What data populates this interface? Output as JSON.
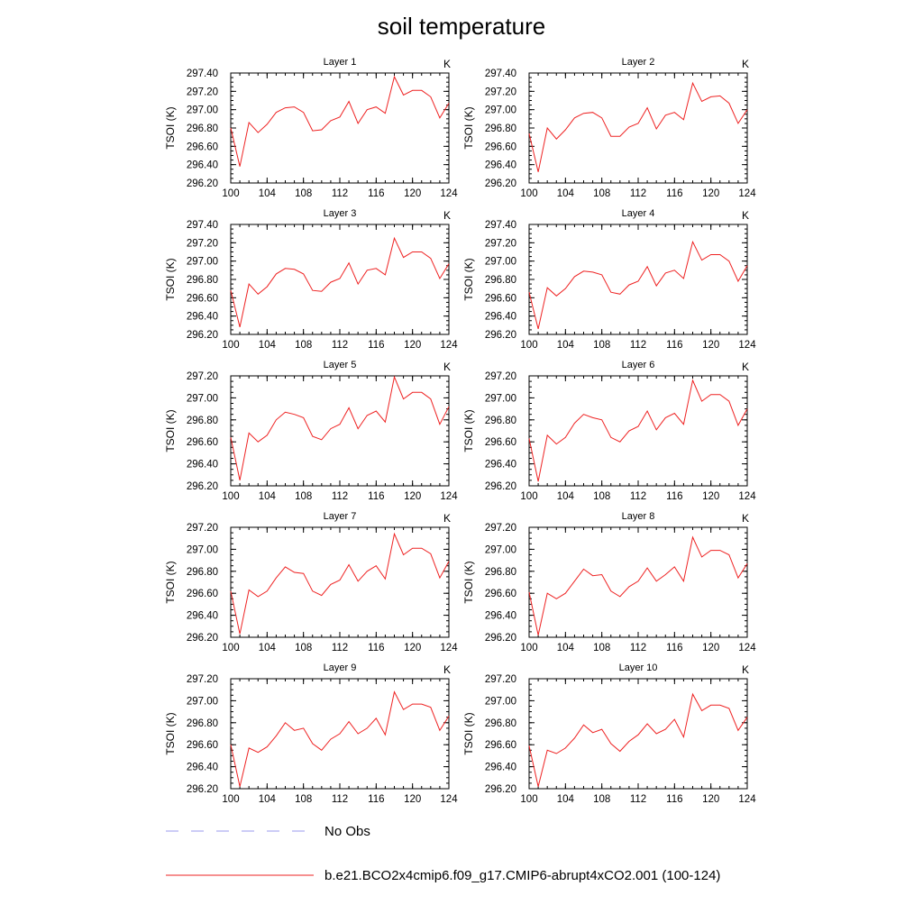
{
  "figure": {
    "title": "soil temperature",
    "legend": {
      "items": [
        {
          "label": "No Obs",
          "color": "#9999ee",
          "style": "dashed"
        },
        {
          "label": "b.e21.BCO2x4cmip6.f09_g17.CMIP6-abrupt4xCO2.001 (100-124)",
          "color": "#ee2222",
          "style": "solid"
        }
      ]
    }
  },
  "chart_data": [
    {
      "type": "line",
      "title": "Layer 1",
      "units": "K",
      "ylabel": "TSOI  (K)",
      "xlim": [
        100,
        124
      ],
      "xticks": [
        100,
        104,
        108,
        112,
        116,
        120,
        124
      ],
      "ylim": [
        296.2,
        297.4
      ],
      "yticks": [
        "296.20",
        "296.40",
        "296.60",
        "296.80",
        "297.00",
        "297.20",
        "297.40"
      ],
      "x": [
        100,
        101,
        102,
        103,
        104,
        105,
        106,
        107,
        108,
        109,
        110,
        111,
        112,
        113,
        114,
        115,
        116,
        117,
        118,
        119,
        120,
        121,
        122,
        123,
        124
      ],
      "series": [
        {
          "name": "b.e21.BCO2x4cmip6.f09_g17.CMIP6-abrupt4xCO2.001 (100-124)",
          "values": [
            296.8,
            296.38,
            296.86,
            296.75,
            296.84,
            296.97,
            297.02,
            297.03,
            296.97,
            296.77,
            296.78,
            296.88,
            296.92,
            297.09,
            296.85,
            297.0,
            297.03,
            296.96,
            297.36,
            297.16,
            297.21,
            297.21,
            297.14,
            296.91,
            297.07
          ]
        }
      ]
    },
    {
      "type": "line",
      "title": "Layer 2",
      "units": "K",
      "ylabel": "TSOI  (K)",
      "xlim": [
        100,
        124
      ],
      "xticks": [
        100,
        104,
        108,
        112,
        116,
        120,
        124
      ],
      "ylim": [
        296.2,
        297.4
      ],
      "yticks": [
        "296.20",
        "296.40",
        "296.60",
        "296.80",
        "297.00",
        "297.20",
        "297.40"
      ],
      "x": [
        100,
        101,
        102,
        103,
        104,
        105,
        106,
        107,
        108,
        109,
        110,
        111,
        112,
        113,
        114,
        115,
        116,
        117,
        118,
        119,
        120,
        121,
        122,
        123,
        124
      ],
      "series": [
        {
          "name": "b.e21.BCO2x4cmip6.f09_g17.CMIP6-abrupt4xCO2.001 (100-124)",
          "values": [
            296.74,
            296.32,
            296.8,
            296.68,
            296.78,
            296.91,
            296.96,
            296.97,
            296.91,
            296.71,
            296.71,
            296.81,
            296.85,
            297.02,
            296.79,
            296.94,
            296.97,
            296.89,
            297.29,
            297.09,
            297.14,
            297.15,
            297.07,
            296.85,
            297.0
          ]
        }
      ]
    },
    {
      "type": "line",
      "title": "Layer 3",
      "units": "K",
      "ylabel": "TSOI  (K)",
      "xlim": [
        100,
        124
      ],
      "xticks": [
        100,
        104,
        108,
        112,
        116,
        120,
        124
      ],
      "ylim": [
        296.2,
        297.4
      ],
      "yticks": [
        "296.20",
        "296.40",
        "296.60",
        "296.80",
        "297.00",
        "297.20",
        "297.40"
      ],
      "x": [
        100,
        101,
        102,
        103,
        104,
        105,
        106,
        107,
        108,
        109,
        110,
        111,
        112,
        113,
        114,
        115,
        116,
        117,
        118,
        119,
        120,
        121,
        122,
        123,
        124
      ],
      "series": [
        {
          "name": "b.e21.BCO2x4cmip6.f09_g17.CMIP6-abrupt4xCO2.001 (100-124)",
          "values": [
            296.68,
            296.28,
            296.75,
            296.64,
            296.72,
            296.86,
            296.92,
            296.91,
            296.86,
            296.68,
            296.67,
            296.77,
            296.81,
            296.98,
            296.75,
            296.9,
            296.92,
            296.85,
            297.25,
            297.04,
            297.1,
            297.1,
            297.03,
            296.81,
            296.97
          ]
        }
      ]
    },
    {
      "type": "line",
      "title": "Layer 4",
      "units": "K",
      "ylabel": "TSOI  (K)",
      "xlim": [
        100,
        124
      ],
      "xticks": [
        100,
        104,
        108,
        112,
        116,
        120,
        124
      ],
      "ylim": [
        296.2,
        297.4
      ],
      "yticks": [
        "296.20",
        "296.40",
        "296.60",
        "296.80",
        "297.00",
        "297.20",
        "297.40"
      ],
      "x": [
        100,
        101,
        102,
        103,
        104,
        105,
        106,
        107,
        108,
        109,
        110,
        111,
        112,
        113,
        114,
        115,
        116,
        117,
        118,
        119,
        120,
        121,
        122,
        123,
        124
      ],
      "series": [
        {
          "name": "b.e21.BCO2x4cmip6.f09_g17.CMIP6-abrupt4xCO2.001 (100-124)",
          "values": [
            296.66,
            296.26,
            296.71,
            296.62,
            296.7,
            296.83,
            296.89,
            296.88,
            296.85,
            296.66,
            296.64,
            296.74,
            296.78,
            296.94,
            296.73,
            296.87,
            296.9,
            296.81,
            297.21,
            297.01,
            297.07,
            297.07,
            297.0,
            296.78,
            296.95
          ]
        }
      ]
    },
    {
      "type": "line",
      "title": "Layer 5",
      "units": "K",
      "ylabel": "TSOI  (K)",
      "xlim": [
        100,
        124
      ],
      "xticks": [
        100,
        104,
        108,
        112,
        116,
        120,
        124
      ],
      "ylim": [
        296.2,
        297.2
      ],
      "yticks": [
        "296.20",
        "296.40",
        "296.60",
        "296.80",
        "297.00",
        "297.20"
      ],
      "x": [
        100,
        101,
        102,
        103,
        104,
        105,
        106,
        107,
        108,
        109,
        110,
        111,
        112,
        113,
        114,
        115,
        116,
        117,
        118,
        119,
        120,
        121,
        122,
        123,
        124
      ],
      "series": [
        {
          "name": "b.e21.BCO2x4cmip6.f09_g17.CMIP6-abrupt4xCO2.001 (100-124)",
          "values": [
            296.64,
            296.25,
            296.68,
            296.6,
            296.66,
            296.8,
            296.87,
            296.85,
            296.82,
            296.65,
            296.62,
            296.72,
            296.76,
            296.91,
            296.72,
            296.84,
            296.88,
            296.78,
            297.19,
            296.99,
            297.05,
            297.05,
            296.99,
            296.76,
            296.92
          ]
        }
      ]
    },
    {
      "type": "line",
      "title": "Layer 6",
      "units": "K",
      "ylabel": "TSOI  (K)",
      "xlim": [
        100,
        124
      ],
      "xticks": [
        100,
        104,
        108,
        112,
        116,
        120,
        124
      ],
      "ylim": [
        296.2,
        297.2
      ],
      "yticks": [
        "296.20",
        "296.40",
        "296.60",
        "296.80",
        "297.00",
        "297.20"
      ],
      "x": [
        100,
        101,
        102,
        103,
        104,
        105,
        106,
        107,
        108,
        109,
        110,
        111,
        112,
        113,
        114,
        115,
        116,
        117,
        118,
        119,
        120,
        121,
        122,
        123,
        124
      ],
      "series": [
        {
          "name": "b.e21.BCO2x4cmip6.f09_g17.CMIP6-abrupt4xCO2.001 (100-124)",
          "values": [
            296.63,
            296.24,
            296.66,
            296.58,
            296.64,
            296.77,
            296.85,
            296.82,
            296.8,
            296.64,
            296.6,
            296.7,
            296.74,
            296.88,
            296.71,
            296.82,
            296.86,
            296.76,
            297.16,
            296.97,
            297.03,
            297.03,
            296.97,
            296.75,
            296.9
          ]
        }
      ]
    },
    {
      "type": "line",
      "title": "Layer 7",
      "units": "K",
      "ylabel": "TSOI  (K)",
      "xlim": [
        100,
        124
      ],
      "xticks": [
        100,
        104,
        108,
        112,
        116,
        120,
        124
      ],
      "ylim": [
        296.2,
        297.2
      ],
      "yticks": [
        "296.20",
        "296.40",
        "296.60",
        "296.80",
        "297.00",
        "297.20"
      ],
      "x": [
        100,
        101,
        102,
        103,
        104,
        105,
        106,
        107,
        108,
        109,
        110,
        111,
        112,
        113,
        114,
        115,
        116,
        117,
        118,
        119,
        120,
        121,
        122,
        123,
        124
      ],
      "series": [
        {
          "name": "b.e21.BCO2x4cmip6.f09_g17.CMIP6-abrupt4xCO2.001 (100-124)",
          "values": [
            296.62,
            296.23,
            296.63,
            296.57,
            296.62,
            296.74,
            296.84,
            296.79,
            296.78,
            296.62,
            296.58,
            296.68,
            296.72,
            296.86,
            296.71,
            296.8,
            296.85,
            296.73,
            297.14,
            296.95,
            297.01,
            297.01,
            296.96,
            296.74,
            296.89
          ]
        }
      ]
    },
    {
      "type": "line",
      "title": "Layer 8",
      "units": "K",
      "ylabel": "TSOI  (K)",
      "xlim": [
        100,
        124
      ],
      "xticks": [
        100,
        104,
        108,
        112,
        116,
        120,
        124
      ],
      "ylim": [
        296.2,
        297.2
      ],
      "yticks": [
        "296.20",
        "296.40",
        "296.60",
        "296.80",
        "297.00",
        "297.20"
      ],
      "x": [
        100,
        101,
        102,
        103,
        104,
        105,
        106,
        107,
        108,
        109,
        110,
        111,
        112,
        113,
        114,
        115,
        116,
        117,
        118,
        119,
        120,
        121,
        122,
        123,
        124
      ],
      "series": [
        {
          "name": "b.e21.BCO2x4cmip6.f09_g17.CMIP6-abrupt4xCO2.001 (100-124)",
          "values": [
            296.61,
            296.22,
            296.6,
            296.55,
            296.6,
            296.71,
            296.82,
            296.76,
            296.77,
            296.62,
            296.57,
            296.66,
            296.71,
            296.83,
            296.71,
            296.77,
            296.84,
            296.71,
            297.11,
            296.93,
            296.99,
            296.99,
            296.95,
            296.74,
            296.87
          ]
        }
      ]
    },
    {
      "type": "line",
      "title": "Layer 9",
      "units": "K",
      "ylabel": "TSOI  (K)",
      "xlim": [
        100,
        124
      ],
      "xticks": [
        100,
        104,
        108,
        112,
        116,
        120,
        124
      ],
      "ylim": [
        296.2,
        297.2
      ],
      "yticks": [
        "296.20",
        "296.40",
        "296.60",
        "296.80",
        "297.00",
        "297.20"
      ],
      "x": [
        100,
        101,
        102,
        103,
        104,
        105,
        106,
        107,
        108,
        109,
        110,
        111,
        112,
        113,
        114,
        115,
        116,
        117,
        118,
        119,
        120,
        121,
        122,
        123,
        124
      ],
      "series": [
        {
          "name": "b.e21.BCO2x4cmip6.f09_g17.CMIP6-abrupt4xCO2.001 (100-124)",
          "values": [
            296.6,
            296.22,
            296.57,
            296.53,
            296.58,
            296.68,
            296.8,
            296.73,
            296.75,
            296.61,
            296.55,
            296.65,
            296.7,
            296.81,
            296.7,
            296.75,
            296.84,
            296.69,
            297.08,
            296.92,
            296.97,
            296.97,
            296.94,
            296.73,
            296.86
          ]
        }
      ]
    },
    {
      "type": "line",
      "title": "Layer 10",
      "units": "K",
      "ylabel": "TSOI  (K)",
      "xlim": [
        100,
        124
      ],
      "xticks": [
        100,
        104,
        108,
        112,
        116,
        120,
        124
      ],
      "ylim": [
        296.2,
        297.2
      ],
      "yticks": [
        "296.20",
        "296.40",
        "296.60",
        "296.80",
        "297.00",
        "297.20"
      ],
      "x": [
        100,
        101,
        102,
        103,
        104,
        105,
        106,
        107,
        108,
        109,
        110,
        111,
        112,
        113,
        114,
        115,
        116,
        117,
        118,
        119,
        120,
        121,
        122,
        123,
        124
      ],
      "series": [
        {
          "name": "b.e21.BCO2x4cmip6.f09_g17.CMIP6-abrupt4xCO2.001 (100-124)",
          "values": [
            296.59,
            296.22,
            296.55,
            296.52,
            296.57,
            296.66,
            296.78,
            296.71,
            296.74,
            296.61,
            296.54,
            296.63,
            296.69,
            296.79,
            296.7,
            296.74,
            296.83,
            296.67,
            297.06,
            296.91,
            296.96,
            296.96,
            296.93,
            296.73,
            296.85
          ]
        }
      ]
    }
  ]
}
